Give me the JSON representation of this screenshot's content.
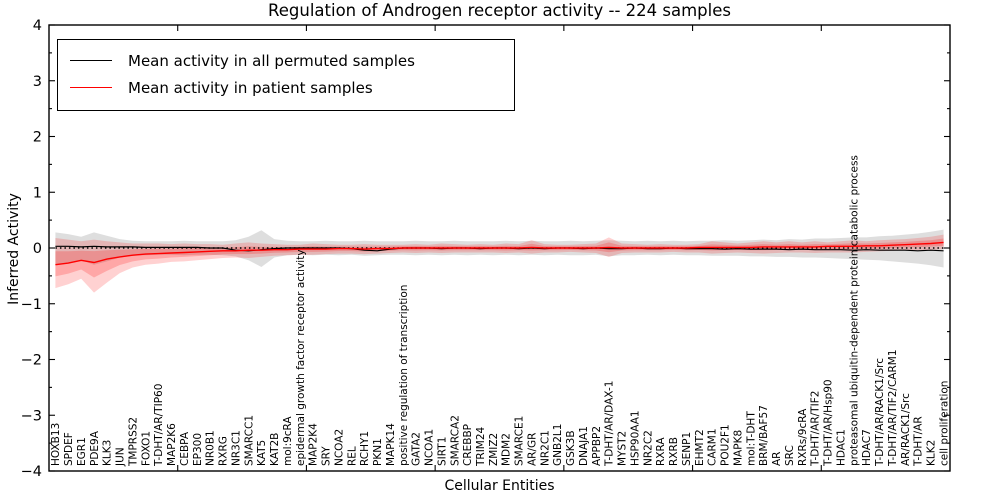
{
  "figure": {
    "background": "#ffffff",
    "axis_color": "#000000"
  },
  "chart_data": {
    "type": "line",
    "title": "Regulation of Androgen receptor activity -- 224 samples",
    "sample_count": 224,
    "xlabel": "Cellular Entities",
    "ylabel": "Inferred Activity",
    "ylim": [
      -4,
      4
    ],
    "ytick_values": [
      4,
      3,
      2,
      1,
      0,
      -1,
      -2,
      -3,
      -4
    ],
    "ytick_labels": [
      "4",
      "3",
      "2",
      "1",
      "0",
      "−1",
      "−2",
      "−3",
      "−4"
    ],
    "minor_ytick_step": 0.5,
    "xtick_major_every": 10,
    "grid": false,
    "legend_position": "upper left",
    "categories": [
      "HOXB13",
      "SPDEF",
      "EGR1",
      "PDE9A",
      "KLK3",
      "JUN",
      "TMPRSS2",
      "FOXO1",
      "T-DHT/AR/TIP60",
      "MAP2K6",
      "CEBPA",
      "EP300",
      "NR0B1",
      "RXRG",
      "NR3C1",
      "SMARCC1",
      "KAT5",
      "KAT2B",
      "mol:9cRA",
      "epidermal growth factor receptor activity",
      "MAP2K4",
      "SRY",
      "NCOA2",
      "REL",
      "RCHY1",
      "PKN1",
      "MAPK14",
      "positive regulation of transcription",
      "GATA2",
      "NCOA1",
      "SIRT1",
      "SMARCA2",
      "CREBBP",
      "TRIM24",
      "ZMIZ2",
      "MDM2",
      "SMARCE1",
      "AR/GR",
      "NR2C1",
      "GNB2L1",
      "GSK3B",
      "DNAJA1",
      "APPBP2",
      "T-DHT/AR/DAX-1",
      "MYST2",
      "HSP90AA1",
      "NR2C2",
      "RXRA",
      "RXRB",
      "SENP1",
      "EHMT2",
      "CARM1",
      "POU2F1",
      "MAPK8",
      "mol:T-DHT",
      "BRM/BAF57",
      "AR",
      "SRC",
      "RXRs/9cRA",
      "T-DHT/AR/TIF2",
      "T-DHT/AR/Hsp90",
      "HDAC1",
      "proteasomal ubiquitin-dependent protein catabolic process",
      "HDAC7",
      "T-DHT/AR/RACK1/Src",
      "T-DHT/AR/TIF2/CARM1",
      "AR/RACK1/Src",
      "T-DHT/AR",
      "KLK2",
      "cell proliferation"
    ],
    "series": [
      {
        "name": "Mean activity in all permuted samples",
        "color": "#000000",
        "style": "solid",
        "values": [
          0.03,
          0.03,
          0.02,
          0.03,
          0.02,
          0.02,
          0.02,
          0.01,
          0.01,
          0.01,
          0.01,
          0.01,
          0.0,
          0.0,
          -0.04,
          -0.05,
          -0.03,
          -0.01,
          0.0,
          0.0,
          0.0,
          0.0,
          0.0,
          -0.01,
          -0.04,
          -0.05,
          -0.02,
          0.0,
          0.0,
          0.0,
          -0.01,
          0.0,
          0.0,
          -0.01,
          0.0,
          0.0,
          -0.01,
          0.0,
          -0.01,
          0.0,
          0.0,
          -0.01,
          0.0,
          -0.01,
          -0.01,
          0.0,
          -0.01,
          -0.01,
          0.0,
          -0.01,
          -0.01,
          -0.01,
          -0.02,
          -0.01,
          -0.02,
          -0.02,
          -0.02,
          -0.03,
          -0.02,
          -0.03,
          -0.03,
          -0.03,
          -0.04,
          -0.03,
          -0.04,
          -0.04,
          -0.04,
          -0.05,
          -0.04,
          -0.05
        ]
      },
      {
        "name": "Mean activity in patient samples",
        "color": "#ff0000",
        "style": "solid",
        "values": [
          -0.3,
          -0.27,
          -0.22,
          -0.26,
          -0.2,
          -0.16,
          -0.13,
          -0.11,
          -0.1,
          -0.09,
          -0.08,
          -0.07,
          -0.06,
          -0.05,
          -0.05,
          -0.04,
          -0.04,
          -0.03,
          -0.03,
          -0.02,
          -0.02,
          -0.02,
          -0.01,
          -0.01,
          -0.02,
          -0.01,
          -0.01,
          0.0,
          0.0,
          0.0,
          0.0,
          0.0,
          0.0,
          0.0,
          0.0,
          0.0,
          0.0,
          0.01,
          0.0,
          0.0,
          0.0,
          0.0,
          0.0,
          0.01,
          0.0,
          0.0,
          0.0,
          0.0,
          0.0,
          0.0,
          0.01,
          0.01,
          0.01,
          0.01,
          0.01,
          0.02,
          0.02,
          0.02,
          0.02,
          0.02,
          0.03,
          0.03,
          0.03,
          0.04,
          0.04,
          0.05,
          0.06,
          0.07,
          0.08,
          0.1
        ]
      },
      {
        "name": "zero reference (dotted)",
        "color": "#000000",
        "style": "dotted",
        "constant": 0
      }
    ],
    "bands": [
      {
        "name": "permuted samples spread",
        "color": "rgba(0,0,0,0.13)",
        "hi": [
          0.28,
          0.25,
          0.2,
          0.28,
          0.22,
          0.16,
          0.13,
          0.12,
          0.12,
          0.12,
          0.13,
          0.12,
          0.12,
          0.12,
          0.14,
          0.2,
          0.32,
          0.16,
          0.13,
          0.12,
          0.12,
          0.13,
          0.12,
          0.12,
          0.13,
          0.12,
          0.12,
          0.12,
          0.13,
          0.12,
          0.12,
          0.13,
          0.12,
          0.12,
          0.12,
          0.13,
          0.12,
          0.13,
          0.12,
          0.12,
          0.13,
          0.12,
          0.13,
          0.14,
          0.13,
          0.12,
          0.13,
          0.12,
          0.13,
          0.12,
          0.13,
          0.13,
          0.14,
          0.13,
          0.14,
          0.15,
          0.14,
          0.16,
          0.15,
          0.17,
          0.17,
          0.18,
          0.19,
          0.19,
          0.21,
          0.22,
          0.24,
          0.26,
          0.29,
          0.33
        ],
        "lo": [
          -0.3,
          -0.27,
          -0.22,
          -0.3,
          -0.24,
          -0.17,
          -0.14,
          -0.13,
          -0.12,
          -0.12,
          -0.13,
          -0.12,
          -0.12,
          -0.13,
          -0.15,
          -0.22,
          -0.34,
          -0.17,
          -0.13,
          -0.12,
          -0.13,
          -0.12,
          -0.13,
          -0.12,
          -0.14,
          -0.13,
          -0.12,
          -0.12,
          -0.13,
          -0.12,
          -0.13,
          -0.12,
          -0.13,
          -0.12,
          -0.13,
          -0.12,
          -0.13,
          -0.12,
          -0.13,
          -0.12,
          -0.13,
          -0.13,
          -0.12,
          -0.15,
          -0.13,
          -0.13,
          -0.12,
          -0.13,
          -0.12,
          -0.13,
          -0.13,
          -0.14,
          -0.14,
          -0.14,
          -0.15,
          -0.15,
          -0.16,
          -0.16,
          -0.17,
          -0.17,
          -0.18,
          -0.19,
          -0.2,
          -0.21,
          -0.22,
          -0.24,
          -0.26,
          -0.28,
          -0.31,
          -0.35
        ]
      },
      {
        "name": "patient samples spread",
        "color": "rgba(255,0,0,0.18)",
        "hi": [
          0.18,
          0.15,
          0.12,
          0.15,
          0.12,
          0.1,
          0.08,
          0.08,
          0.08,
          0.07,
          0.08,
          0.07,
          0.07,
          0.06,
          0.08,
          0.1,
          0.08,
          0.07,
          0.06,
          0.06,
          0.08,
          0.07,
          0.06,
          0.06,
          0.07,
          0.06,
          0.06,
          0.06,
          0.07,
          0.06,
          0.08,
          0.07,
          0.06,
          0.07,
          0.06,
          0.08,
          0.07,
          0.14,
          0.07,
          0.06,
          0.06,
          0.07,
          0.08,
          0.19,
          0.08,
          0.07,
          0.06,
          0.07,
          0.06,
          0.06,
          0.07,
          0.12,
          0.1,
          0.08,
          0.1,
          0.12,
          0.1,
          0.12,
          0.1,
          0.12,
          0.1,
          0.12,
          0.14,
          0.12,
          0.14,
          0.15,
          0.16,
          0.18,
          0.2,
          0.24
        ],
        "lo": [
          -0.72,
          -0.65,
          -0.55,
          -0.8,
          -0.62,
          -0.45,
          -0.35,
          -0.3,
          -0.28,
          -0.25,
          -0.24,
          -0.22,
          -0.2,
          -0.18,
          -0.17,
          -0.18,
          -0.16,
          -0.14,
          -0.13,
          -0.12,
          -0.12,
          -0.11,
          -0.1,
          -0.1,
          -0.11,
          -0.1,
          -0.09,
          -0.08,
          -0.09,
          -0.08,
          -0.09,
          -0.08,
          -0.08,
          -0.08,
          -0.08,
          -0.09,
          -0.08,
          -0.1,
          -0.08,
          -0.08,
          -0.07,
          -0.08,
          -0.09,
          -0.16,
          -0.09,
          -0.08,
          -0.08,
          -0.08,
          -0.07,
          -0.08,
          -0.08,
          -0.1,
          -0.09,
          -0.08,
          -0.09,
          -0.1,
          -0.09,
          -0.08,
          -0.08,
          -0.09,
          -0.08,
          -0.08,
          -0.08,
          -0.07,
          -0.06,
          -0.05,
          -0.04,
          -0.04,
          -0.03,
          -0.02
        ]
      }
    ],
    "legend": {
      "entries": [
        {
          "label": "Mean activity in all permuted samples",
          "color": "#000000"
        },
        {
          "label": "Mean activity in patient samples",
          "color": "#ff0000"
        }
      ]
    }
  }
}
